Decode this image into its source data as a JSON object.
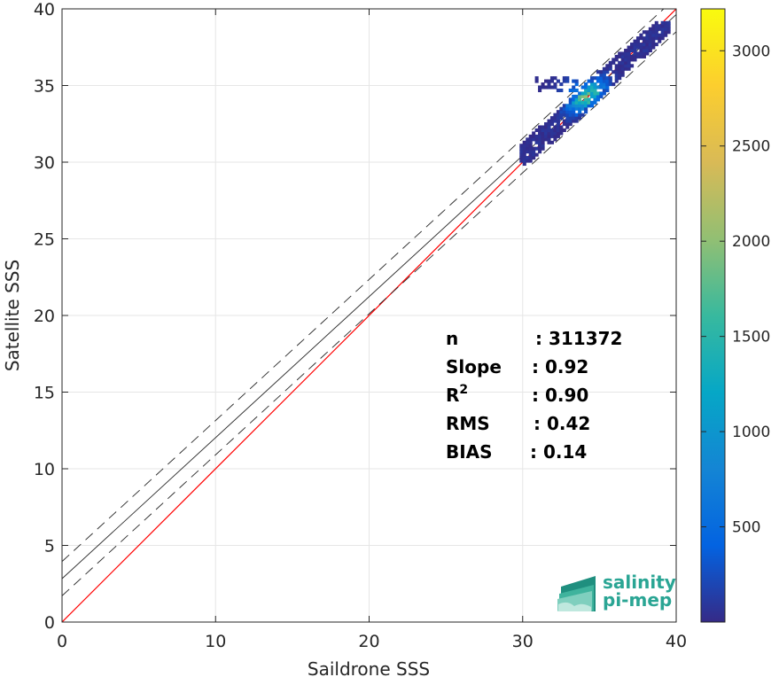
{
  "chart_data": {
    "type": "heatmap",
    "xlabel": "Saildrone SSS",
    "ylabel": "Satellite SSS",
    "xlim": [
      0,
      40
    ],
    "ylim": [
      0,
      40
    ],
    "xticks": [
      0,
      10,
      20,
      30,
      40
    ],
    "yticks": [
      0,
      5,
      10,
      15,
      20,
      25,
      30,
      35,
      40
    ],
    "grid": true,
    "reference_lines": [
      {
        "name": "one-to-one",
        "intercept": 0,
        "slope": 1,
        "style": "solid",
        "color": "#ff0000"
      },
      {
        "name": "fit",
        "intercept": 2.83,
        "slope": 0.92,
        "style": "solid",
        "color": "#262626"
      },
      {
        "name": "fit-upper",
        "intercept": 3.95,
        "slope": 0.92,
        "style": "dashed",
        "color": "#262626"
      },
      {
        "name": "fit-lower",
        "intercept": 1.71,
        "slope": 0.92,
        "style": "dashed",
        "color": "#262626"
      }
    ],
    "density_cloud": {
      "x_range": [
        29.8,
        39.5
      ],
      "y_range": [
        29.8,
        39.2
      ],
      "peak_xy": [
        34,
        34.3
      ],
      "peak_count": 3200
    },
    "colorbar": {
      "min": 0,
      "max": 3220,
      "ticks": [
        500,
        1000,
        1500,
        2000,
        2500,
        3000
      ],
      "colormap": "parula",
      "colors": [
        "#352a87",
        "#0363e1",
        "#1485d4",
        "#06a7c6",
        "#38b99e",
        "#92bf73",
        "#d9ba56",
        "#fcce2e",
        "#f9fb0e"
      ]
    },
    "stats": [
      {
        "key": "n",
        "sep": ":",
        "value": "311372"
      },
      {
        "key": "Slope",
        "sep": ":",
        "value": "0.92"
      },
      {
        "key": "R",
        "sup": "2",
        "sep": ":",
        "value": "0.90"
      },
      {
        "key": "RMS",
        "sep": ":",
        "value": "0.42"
      },
      {
        "key": "BIAS",
        "sep": ":",
        "value": "0.14"
      }
    ]
  },
  "logo": {
    "line1": "salinity",
    "line2": "pi-mep"
  }
}
